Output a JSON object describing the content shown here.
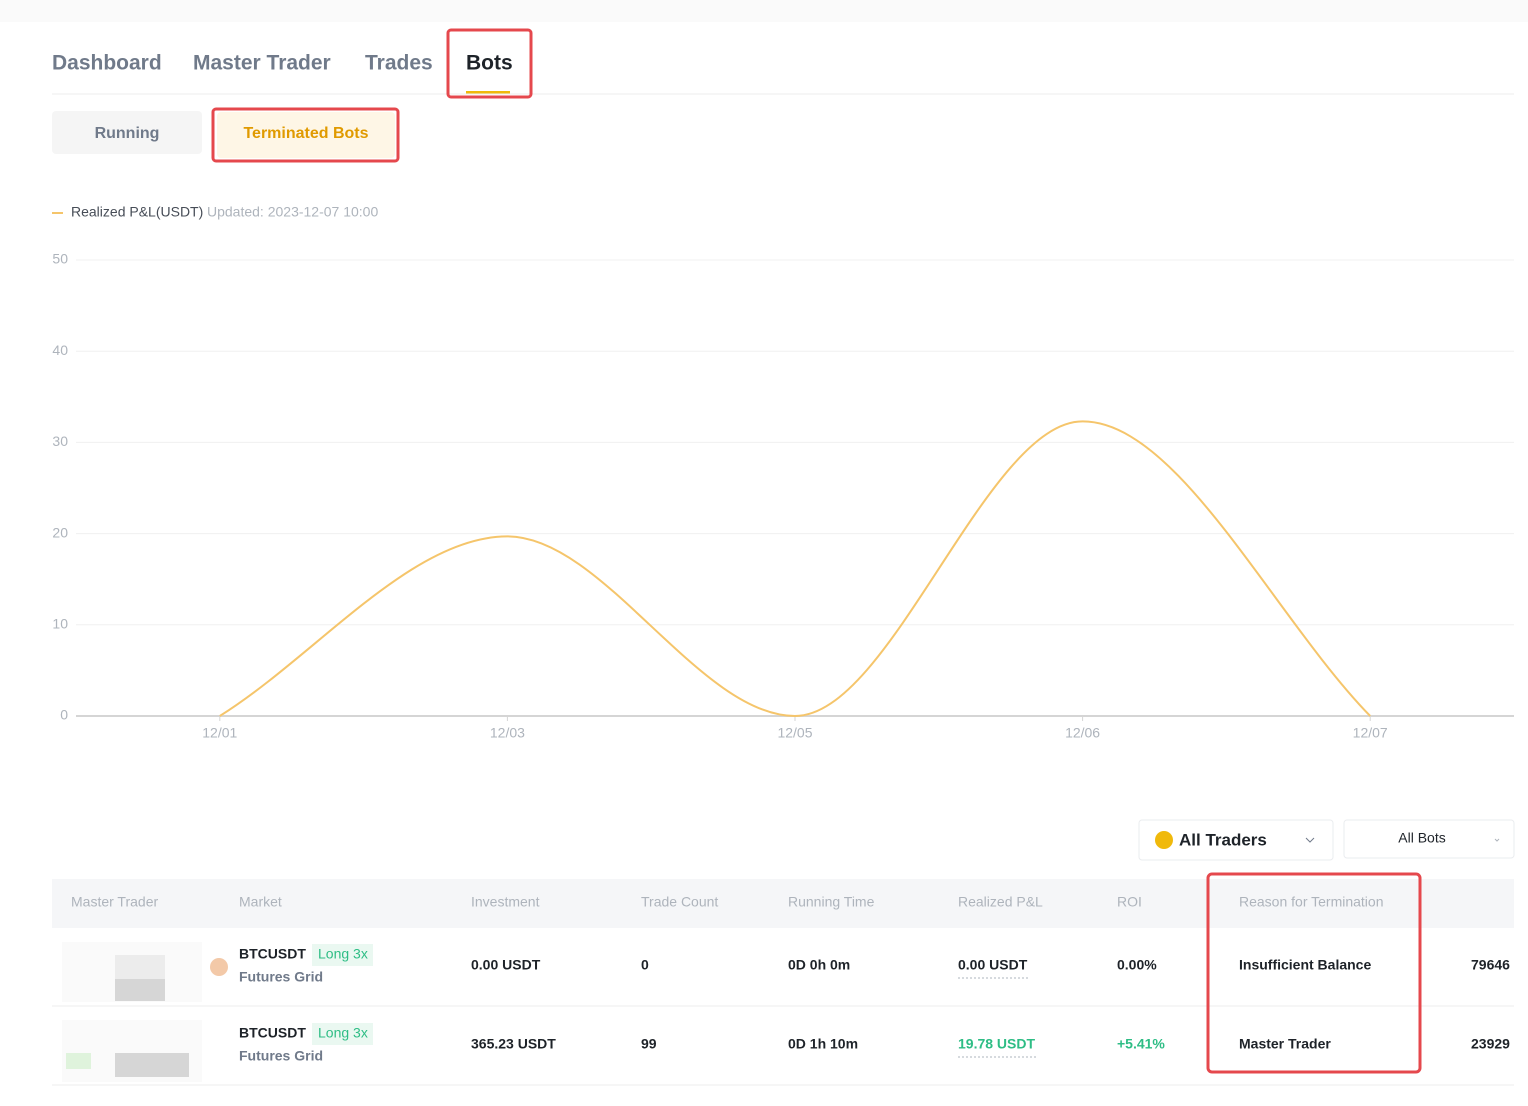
{
  "tabs": [
    "Dashboard",
    "Master Trader",
    "Trades",
    "Bots"
  ],
  "subtabs": [
    "Running",
    "Terminated Bots"
  ],
  "chart_data": {
    "type": "line",
    "updated": "Updated: 2023-12-07 10:00",
    "x": [
      "12/01",
      "12/03",
      "12/05",
      "12/06",
      "12/07"
    ],
    "series": [
      {
        "name": "Realized P&L(USDT)",
        "color": "#f5c56b",
        "values": [
          0,
          19.7,
          0,
          32.3,
          0
        ]
      }
    ],
    "ylim": [
      0,
      50
    ],
    "yticks": [
      0,
      10,
      20,
      30,
      40,
      50
    ],
    "grid": true
  },
  "filters": [
    "All Traders",
    "All Bots"
  ],
  "table": {
    "headers": [
      "Master Trader",
      "Market",
      "Investment",
      "Trade Count",
      "Running Time",
      "Realized P&L",
      "ROI",
      "Reason for Termination"
    ],
    "rows": [
      {
        "symbol": "BTCUSDT",
        "side": "Long 3x",
        "kind": "Futures Grid",
        "cells": [
          "0.00 USDT",
          "0",
          "0D 0h 0m",
          "0.00 USDT",
          "0.00%",
          "Insufficient Balance",
          "79646"
        ]
      },
      {
        "symbol": "BTCUSDT",
        "side": "Long 3x",
        "kind": "Futures Grid",
        "cells": [
          "365.23 USDT",
          "99",
          "0D 1h 10m",
          "19.78 USDT",
          "+5.41%",
          "Master Trader",
          "23929"
        ]
      }
    ]
  }
}
